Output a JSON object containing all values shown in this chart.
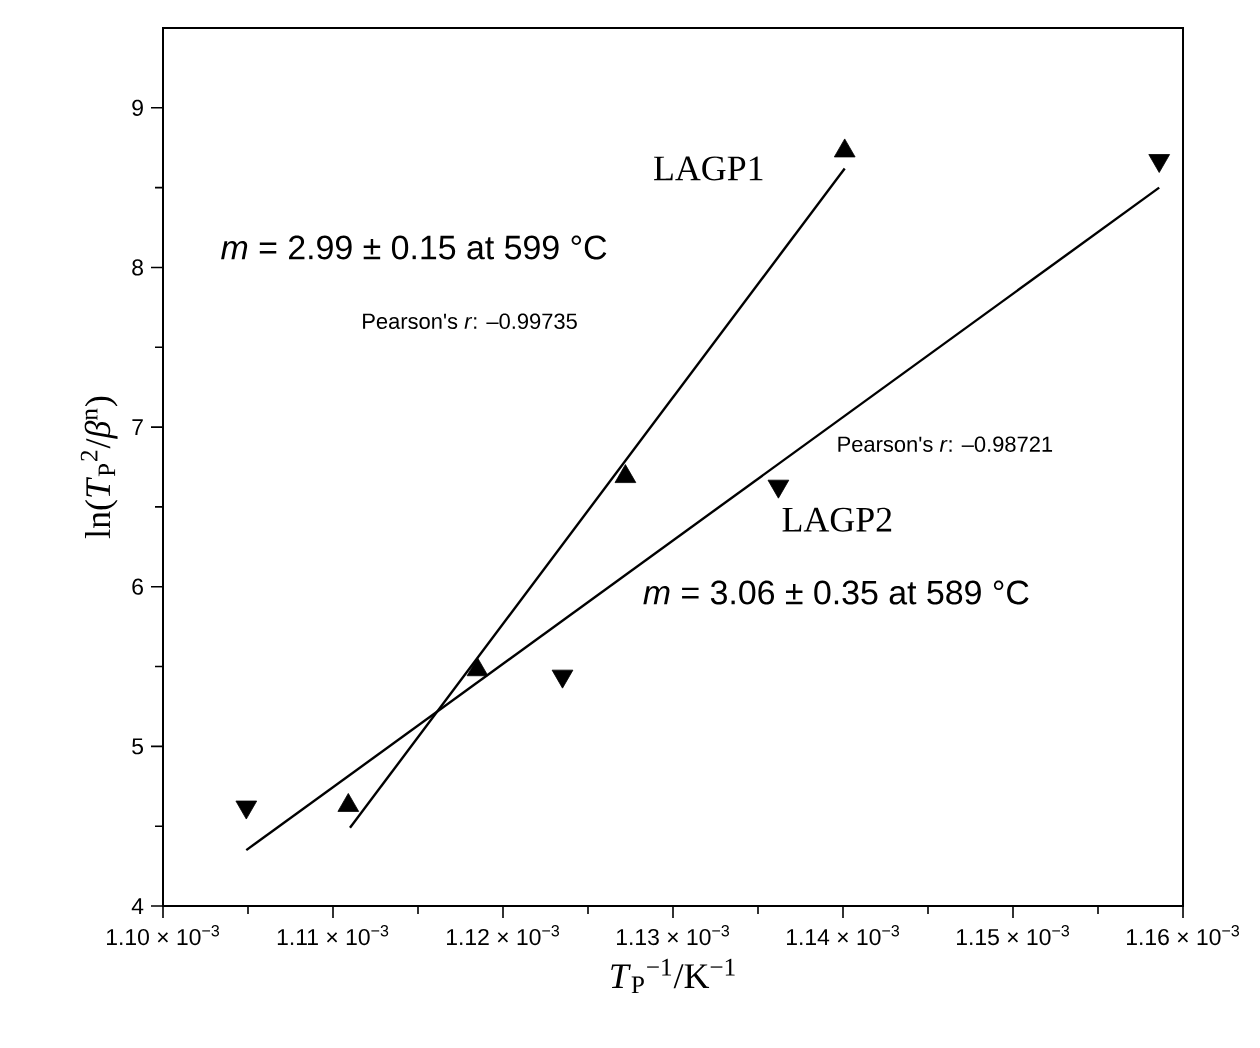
{
  "chart_data": {
    "type": "scatter",
    "xlabel": "*T*$_{P}$$^{−1}$/K$^{−1}$",
    "ylabel": "ln(*T*$_{P}$$^{2}$/*β*$^{n}$)",
    "xlim": [
      0.0011,
      0.00116
    ],
    "ylim": [
      4,
      9.5
    ],
    "xticks": [
      {
        "value": 0.0011,
        "label": "1.10 × 10$^{−3}$"
      },
      {
        "value": 0.00111,
        "label": "1.11 × 10$^{−3}$"
      },
      {
        "value": 0.00112,
        "label": "1.12 × 10$^{−3}$"
      },
      {
        "value": 0.00113,
        "label": "1.13 × 10$^{−3}$"
      },
      {
        "value": 0.00114,
        "label": "1.14 × 10$^{−3}$"
      },
      {
        "value": 0.00115,
        "label": "1.15 × 10$^{−3}$"
      },
      {
        "value": 0.00116,
        "label": "1.16 × 10$^{−3}$"
      }
    ],
    "yticks": [
      4,
      5,
      6,
      7,
      8,
      9
    ],
    "grid": false,
    "series": [
      {
        "name": "LAGP1",
        "marker": "triangle",
        "color": "#000000",
        "x": [
          0.0011109,
          0.0011185,
          0.0011272,
          0.0011401
        ],
        "values": [
          4.63,
          5.48,
          6.69,
          8.73
        ]
      },
      {
        "name": "LAGP2",
        "marker": "triangle-down",
        "color": "#000000",
        "x": [
          0.0011049,
          0.0011235,
          0.0011362,
          0.0011586
        ],
        "values": [
          4.62,
          5.44,
          6.63,
          8.67
        ]
      },
      {
        "type": "line",
        "marker": "none",
        "color": "#000000",
        "x": [
          0.001111,
          0.0011401
        ],
        "values": [
          4.49,
          8.62
        ]
      },
      {
        "type": "line",
        "marker": "none",
        "color": "#000000",
        "x": [
          0.0011049,
          0.0011586
        ],
        "values": [
          4.35,
          8.5
        ]
      }
    ],
    "annotations": [
      "*m* = 2.99 ± 0.15 at 599 °C",
      "Pearson's *r*: –0.99735",
      "Pearson's *r*: –0.98721",
      "*m* = 3.06 ± 0.35 at 589 °C"
    ]
  }
}
